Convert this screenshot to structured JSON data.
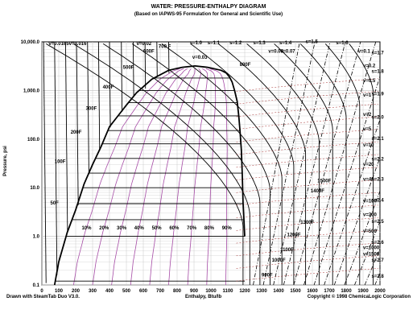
{
  "chart_data": {
    "type": "line",
    "title": "WATER: PRESSURE-ENTHALPY DIAGRAM",
    "subtitle": "(Based on IAPWS-95 Formulation for General and Scientific Use)",
    "xlabel": "Enthalpy, Btu/lb",
    "ylabel": "Pressure, psi",
    "xlim": [
      0,
      2000
    ],
    "ylim": [
      0.1,
      10000
    ],
    "yscale": "log",
    "x_ticks": [
      "0",
      "100",
      "200",
      "300",
      "400",
      "500",
      "600",
      "700",
      "800",
      "900",
      "1000",
      "1100",
      "1200",
      "1300",
      "1400",
      "1500",
      "1600",
      "1700",
      "1800",
      "1900",
      "2000"
    ],
    "y_ticks": [
      "0.1",
      "1.0",
      "10.0",
      "100.0",
      "1,000.0",
      "10,000.0"
    ],
    "grid": true,
    "saturation_dome": {
      "liquid": [
        [
          75,
          0.1
        ],
        [
          100,
          0.3
        ],
        [
          150,
          1.2
        ],
        [
          200,
          3.5
        ],
        [
          250,
          12
        ],
        [
          300,
          30
        ],
        [
          350,
          70
        ],
        [
          400,
          180
        ],
        [
          450,
          300
        ],
        [
          500,
          500
        ],
        [
          560,
          900
        ],
        [
          650,
          1700
        ],
        [
          750,
          2600
        ],
        [
          830,
          3000
        ],
        [
          906,
          3200
        ]
      ],
      "vapor": [
        [
          906,
          3200
        ],
        [
          980,
          3000
        ],
        [
          1060,
          2600
        ],
        [
          1090,
          2300
        ],
        [
          1110,
          1900
        ],
        [
          1125,
          1500
        ],
        [
          1140,
          1000
        ],
        [
          1155,
          600
        ],
        [
          1165,
          300
        ],
        [
          1172,
          150
        ],
        [
          1180,
          60
        ],
        [
          1185,
          20
        ],
        [
          1190,
          5
        ],
        [
          1200,
          1
        ]
      ]
    },
    "quality_labels": [
      "10%",
      "20%",
      "30%",
      "40%",
      "50%",
      "60%",
      "70%",
      "80%",
      "90%"
    ],
    "temperature_labels": [
      {
        "text": "50F",
        "x": 50,
        "y": 4.5
      },
      {
        "text": "100F",
        "x": 75,
        "y": 32
      },
      {
        "text": "200F",
        "x": 170,
        "y": 130
      },
      {
        "text": "300F",
        "x": 260,
        "y": 400
      },
      {
        "text": "400F",
        "x": 360,
        "y": 1100
      },
      {
        "text": "500F",
        "x": 480,
        "y": 2800
      },
      {
        "text": "600F",
        "x": 600,
        "y": 6000
      },
      {
        "text": "700 F",
        "x": 690,
        "y": 7500
      },
      {
        "text": "800F",
        "x": 1170,
        "y": 3200
      },
      {
        "text": "900F",
        "x": 1300,
        "y": 0.15
      },
      {
        "text": "1000F",
        "x": 1360,
        "y": 0.3
      },
      {
        "text": "1100F",
        "x": 1410,
        "y": 0.5
      },
      {
        "text": "1200F",
        "x": 1450,
        "y": 1.0
      },
      {
        "text": "1300F",
        "x": 1530,
        "y": 1.8
      },
      {
        "text": "1400F",
        "x": 1590,
        "y": 8
      },
      {
        "text": "1500F",
        "x": 1630,
        "y": 13
      }
    ],
    "specific_volume_labels": [
      {
        "text": "v=0.0165",
        "x": 40,
        "y": 8600
      },
      {
        "text": "v=0.016",
        "x": 160,
        "y": 8600
      },
      {
        "text": "v=0.02",
        "x": 560,
        "y": 8600
      },
      {
        "text": "v=0.03",
        "x": 890,
        "y": 4500
      },
      {
        "text": "v=0.06",
        "x": 1340,
        "y": 6000
      },
      {
        "text": "v=0.07",
        "x": 1410,
        "y": 6000
      },
      {
        "text": "v=0.1",
        "x": 1870,
        "y": 6000
      },
      {
        "text": "v=0.2",
        "x": 1900,
        "y": 3000
      },
      {
        "text": "v=0.5",
        "x": 1900,
        "y": 1500
      },
      {
        "text": "v=1",
        "x": 1900,
        "y": 750
      },
      {
        "text": "v=2",
        "x": 1900,
        "y": 300
      },
      {
        "text": "v=5",
        "x": 1900,
        "y": 150
      },
      {
        "text": "v=10",
        "x": 1900,
        "y": 70
      },
      {
        "text": "v=20",
        "x": 1900,
        "y": 28
      },
      {
        "text": "v=40",
        "x": 1900,
        "y": 14
      },
      {
        "text": "v=100",
        "x": 1900,
        "y": 5
      },
      {
        "text": "v=200",
        "x": 1900,
        "y": 2.6
      },
      {
        "text": "v=500",
        "x": 1900,
        "y": 1.2
      },
      {
        "text": "v=1000",
        "x": 1900,
        "y": 0.55
      },
      {
        "text": "v=1500",
        "x": 1900,
        "y": 0.4
      }
    ],
    "entropy_labels": [
      {
        "text": "s=1.0",
        "x": 875,
        "y": 9000
      },
      {
        "text": "s=1.1",
        "x": 980,
        "y": 9000
      },
      {
        "text": "s=1.2",
        "x": 1110,
        "y": 9000
      },
      {
        "text": "s=1.3",
        "x": 1250,
        "y": 9000
      },
      {
        "text": "s=1.4",
        "x": 1405,
        "y": 9000
      },
      {
        "text": "s=1.5",
        "x": 1560,
        "y": 9500
      },
      {
        "text": "s=1.6",
        "x": 1740,
        "y": 9000
      },
      {
        "text": "s=1.7",
        "x": 1950,
        "y": 5500
      },
      {
        "text": "s=1.8",
        "x": 1950,
        "y": 2300
      },
      {
        "text": "s=1.9",
        "x": 1950,
        "y": 800
      },
      {
        "text": "s=2.0",
        "x": 1950,
        "y": 260
      },
      {
        "text": "s=2.1",
        "x": 1950,
        "y": 95
      },
      {
        "text": "s=2.2",
        "x": 1950,
        "y": 36
      },
      {
        "text": "s=2.3",
        "x": 1950,
        "y": 14
      },
      {
        "text": "s=2.4",
        "x": 1950,
        "y": 5.2
      },
      {
        "text": "s=2.5",
        "x": 1950,
        "y": 1.9
      },
      {
        "text": "s=2.6",
        "x": 1950,
        "y": 0.7
      },
      {
        "text": "s=2.7",
        "x": 1950,
        "y": 0.3
      },
      {
        "text": "s=2.8",
        "x": 1950,
        "y": 0.14
      }
    ]
  },
  "footer": {
    "left": "Drawn with SteamTab Duo V3.0.",
    "right": "Copyright © 1998 ChemicaLogic Corporation"
  },
  "colors": {
    "isotherm": "#000000",
    "isentrope": "#000000",
    "isochore": "#9b1c1c",
    "quality": "#a64ca6",
    "grid": "#c8c8c8",
    "temperature_label": "#1f2fb0",
    "entropy_label": "#1a8a1a",
    "volume_label": "#9b1c1c"
  }
}
